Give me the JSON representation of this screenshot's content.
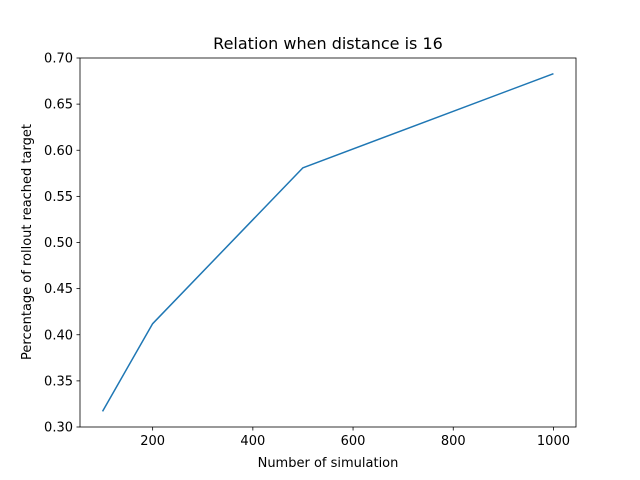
{
  "chart_data": {
    "type": "line",
    "title": "Relation when distance is 16",
    "xlabel": "Number of simulation",
    "ylabel": "Percentage of rollout reached target",
    "xlim": [
      55,
      1045
    ],
    "ylim": [
      0.3,
      0.7
    ],
    "xticks": [
      200,
      400,
      600,
      800,
      1000
    ],
    "yticks": [
      0.3,
      0.35,
      0.4,
      0.45,
      0.5,
      0.55,
      0.6,
      0.65,
      0.7
    ],
    "ytick_labels": [
      "0.30",
      "0.35",
      "0.40",
      "0.45",
      "0.50",
      "0.55",
      "0.60",
      "0.65",
      "0.70"
    ],
    "series": [
      {
        "x": [
          100,
          200,
          500,
          1000
        ],
        "values": [
          0.317,
          0.412,
          0.581,
          0.683
        ],
        "color": "#1f77b4"
      }
    ],
    "grid": false
  }
}
